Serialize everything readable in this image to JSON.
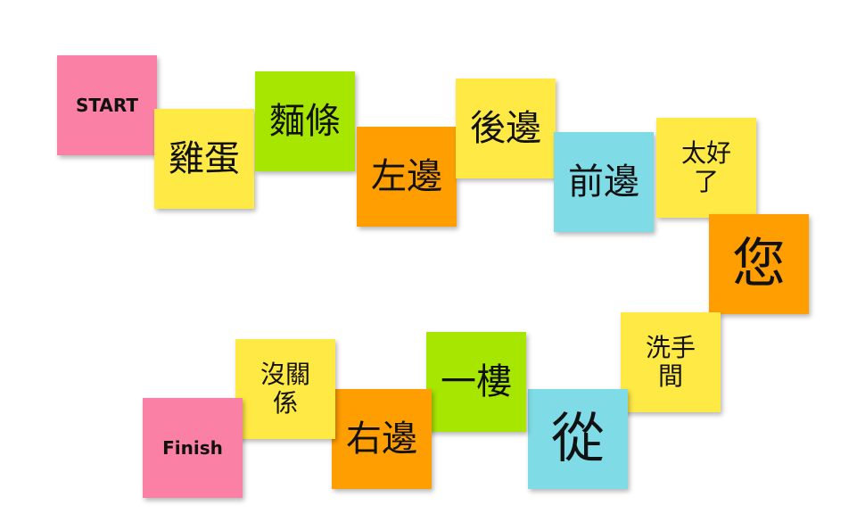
{
  "colors": {
    "pink": "#fb80a6",
    "yellow": "#ffe945",
    "green": "#a6e600",
    "orange": "#ff9e00",
    "cyan": "#7fdbe6"
  },
  "notes": [
    {
      "text": "START",
      "color": "pink"
    },
    {
      "text": "雞蛋",
      "color": "yellow"
    },
    {
      "text": "麵條",
      "color": "green"
    },
    {
      "text": "左邊",
      "color": "orange"
    },
    {
      "text": "後邊",
      "color": "yellow"
    },
    {
      "text": "前邊",
      "color": "cyan"
    },
    {
      "text": "太好了",
      "color": "yellow"
    },
    {
      "text": "您",
      "color": "orange"
    },
    {
      "text": "洗手間",
      "color": "yellow"
    },
    {
      "text": "從",
      "color": "cyan"
    },
    {
      "text": "一樓",
      "color": "green"
    },
    {
      "text": "右邊",
      "color": "orange"
    },
    {
      "text": "沒關係",
      "color": "yellow"
    },
    {
      "text": "Finish",
      "color": "pink"
    }
  ]
}
